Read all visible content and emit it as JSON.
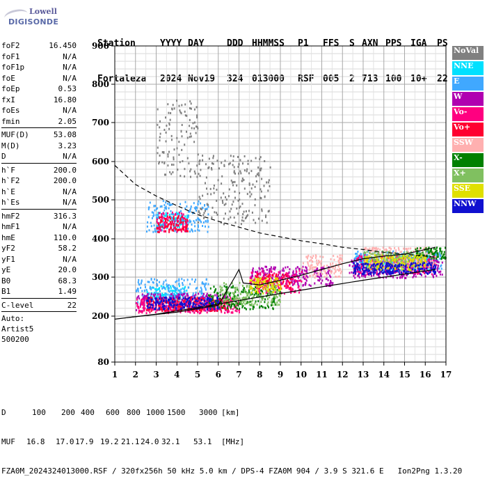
{
  "logo": {
    "line1": "Lowell",
    "line2": "DIGISONDE"
  },
  "header": {
    "row1": [
      "Station",
      "YYYY",
      "DAY",
      "DDD",
      "HHMMSS",
      "P1",
      "FFS",
      "S",
      "AXN",
      "PPS",
      "IGA",
      "PS"
    ],
    "row2": [
      "Fortaleza",
      "2024",
      "Nov19",
      "324",
      "013000",
      "RSF",
      "005",
      "2",
      "713",
      "100",
      "10+",
      "22"
    ]
  },
  "params": {
    "groups": [
      [
        [
          "foF2",
          "16.450"
        ],
        [
          "foF1",
          "N/A"
        ],
        [
          "foF1p",
          "N/A"
        ],
        [
          "foE",
          "N/A"
        ],
        [
          "foEp",
          "0.53"
        ],
        [
          "fxI",
          "16.80"
        ],
        [
          "foEs",
          "N/A"
        ],
        [
          "fmin",
          "2.05"
        ]
      ],
      [
        [
          "MUF(D)",
          "53.08"
        ],
        [
          "M(D)",
          "3.23"
        ],
        [
          "D",
          "N/A"
        ]
      ],
      [
        [
          "h`F",
          "200.0"
        ],
        [
          "h`F2",
          "200.0"
        ],
        [
          "h`E",
          "N/A"
        ],
        [
          "h`Es",
          "N/A"
        ]
      ],
      [
        [
          "hmF2",
          "316.3"
        ],
        [
          "hmF1",
          "N/A"
        ],
        [
          "hmE",
          "110.0"
        ],
        [
          "yF2",
          "58.2"
        ],
        [
          "yF1",
          "N/A"
        ],
        [
          "yE",
          "20.0"
        ],
        [
          "B0",
          "68.3"
        ],
        [
          "B1",
          "1.49"
        ]
      ],
      [
        [
          "C-level",
          "22"
        ]
      ]
    ],
    "auto": [
      "Auto:",
      "Artist5",
      "500200"
    ]
  },
  "legend": [
    {
      "label": "NoVal",
      "color": "#808080"
    },
    {
      "label": "NNE",
      "color": "#00e0ff"
    },
    {
      "label": "E",
      "color": "#40a8ff"
    },
    {
      "label": "W",
      "color": "#b000b0"
    },
    {
      "label": "Vo-",
      "color": "#ff0080"
    },
    {
      "label": "Vo+",
      "color": "#ff0030"
    },
    {
      "label": "SSW",
      "color": "#ffb0b0"
    },
    {
      "label": "X-",
      "color": "#008000"
    },
    {
      "label": "X+",
      "color": "#80c060"
    },
    {
      "label": "SSE",
      "color": "#e0e000"
    },
    {
      "label": "NNW",
      "color": "#1010d0"
    }
  ],
  "chart_data": {
    "type": "scatter",
    "title": "",
    "xlabel": "",
    "ylabel": "",
    "xlim": [
      1,
      17
    ],
    "ylim": [
      80,
      900
    ],
    "x_ticks": [
      1,
      2,
      3,
      4,
      5,
      6,
      7,
      8,
      9,
      10,
      11,
      12,
      13,
      14,
      15,
      16,
      17
    ],
    "y_ticks": [
      80,
      200,
      300,
      400,
      500,
      600,
      700,
      800,
      900
    ],
    "y_nonlinear": true,
    "grid": true,
    "series": [
      {
        "name": "NNE",
        "color": "#00e0ff",
        "clusters": [
          [
            2.5,
            4.5,
            240,
            280
          ],
          [
            3.0,
            4.5,
            430,
            470
          ],
          [
            12.5,
            16.5,
            320,
            360
          ]
        ]
      },
      {
        "name": "E",
        "color": "#40a8ff",
        "clusters": [
          [
            2.0,
            5.5,
            230,
            300
          ],
          [
            2.5,
            5.5,
            420,
            500
          ],
          [
            12.5,
            16.8,
            320,
            370
          ]
        ]
      },
      {
        "name": "W",
        "color": "#b000b0",
        "clusters": [
          [
            2.0,
            6.5,
            215,
            260
          ],
          [
            7.5,
            11.5,
            280,
            330
          ],
          [
            12.3,
            16.8,
            300,
            350
          ]
        ]
      },
      {
        "name": "Vo-",
        "color": "#ff0080",
        "clusters": [
          [
            2.0,
            7.0,
            210,
            250
          ],
          [
            3.0,
            4.5,
            420,
            470
          ],
          [
            7.5,
            10.0,
            260,
            320
          ],
          [
            12.5,
            16.5,
            310,
            360
          ]
        ]
      },
      {
        "name": "Vo+",
        "color": "#ff0030",
        "clusters": [
          [
            2.5,
            6.5,
            215,
            250
          ],
          [
            3.0,
            4.5,
            420,
            460
          ],
          [
            7.8,
            9.5,
            270,
            310
          ]
        ]
      },
      {
        "name": "SSW",
        "color": "#ffb0b0",
        "clusters": [
          [
            10.0,
            12.0,
            300,
            360
          ],
          [
            13.0,
            16.5,
            330,
            380
          ]
        ]
      },
      {
        "name": "X-",
        "color": "#008000",
        "clusters": [
          [
            5.5,
            9.0,
            220,
            280
          ],
          [
            15.5,
            17.0,
            350,
            380
          ]
        ]
      },
      {
        "name": "X+",
        "color": "#80c060",
        "clusters": [
          [
            6.0,
            9.0,
            230,
            290
          ],
          [
            13.0,
            16.0,
            330,
            370
          ]
        ]
      },
      {
        "name": "SSE",
        "color": "#e0e000",
        "clusters": [
          [
            7.5,
            9.0,
            260,
            300
          ],
          [
            13.0,
            16.0,
            320,
            360
          ]
        ]
      },
      {
        "name": "NNW",
        "color": "#1010d0",
        "clusters": [
          [
            2.5,
            6.0,
            220,
            250
          ],
          [
            12.5,
            16.5,
            310,
            340
          ]
        ]
      },
      {
        "name": "NoVal",
        "color": "#808080",
        "clusters": [
          [
            3.0,
            5.0,
            560,
            760
          ],
          [
            5.0,
            8.5,
            440,
            620
          ]
        ]
      }
    ],
    "profile_dashed": [
      [
        1.0,
        590
      ],
      [
        2.0,
        540
      ],
      [
        3.0,
        510
      ],
      [
        4.0,
        485
      ],
      [
        5.0,
        462
      ],
      [
        6.0,
        445
      ],
      [
        7.0,
        430
      ],
      [
        8.0,
        415
      ],
      [
        9.0,
        405
      ],
      [
        10.0,
        395
      ],
      [
        11.0,
        387
      ],
      [
        12.0,
        378
      ],
      [
        13.0,
        372
      ],
      [
        14.0,
        365
      ],
      [
        15.0,
        360
      ],
      [
        16.0,
        355
      ],
      [
        16.5,
        352
      ]
    ],
    "profile_lower": [
      [
        1.0,
        192
      ],
      [
        3.0,
        205
      ],
      [
        5.0,
        222
      ],
      [
        7.0,
        240
      ],
      [
        9.0,
        258
      ],
      [
        11.0,
        275
      ],
      [
        13.0,
        292
      ],
      [
        15.0,
        308
      ],
      [
        16.5,
        320
      ]
    ],
    "profile_trace": [
      [
        1.6,
        196
      ],
      [
        4.0,
        210
      ],
      [
        6.0,
        228
      ],
      [
        6.8,
        300
      ],
      [
        7.0,
        320
      ],
      [
        7.2,
        285
      ],
      [
        8.0,
        280
      ],
      [
        9.0,
        292
      ],
      [
        10.0,
        305
      ],
      [
        11.0,
        320
      ],
      [
        12.0,
        335
      ],
      [
        13.0,
        348
      ],
      [
        14.0,
        355
      ],
      [
        15.0,
        360
      ],
      [
        16.0,
        372
      ],
      [
        16.5,
        378
      ]
    ]
  },
  "footer": {
    "d_label": "D",
    "d_values": [
      "100",
      "200",
      "400",
      "600",
      "800",
      "1000",
      "1500",
      "3000"
    ],
    "d_unit": "[km]",
    "muf_label": "MUF",
    "muf_values": [
      "16.8",
      "17.0",
      "17.9",
      "19.2",
      "21.1",
      "24.0",
      "32.1",
      "53.1"
    ],
    "muf_unit": "[MHz]",
    "file_line": "FZA0M_2024324013000.RSF / 320fx256h 50 kHz 5.0 km / DPS-4 FZA0M 904 / 3.9 S 321.6 E   Ion2Png 1.3.20"
  }
}
